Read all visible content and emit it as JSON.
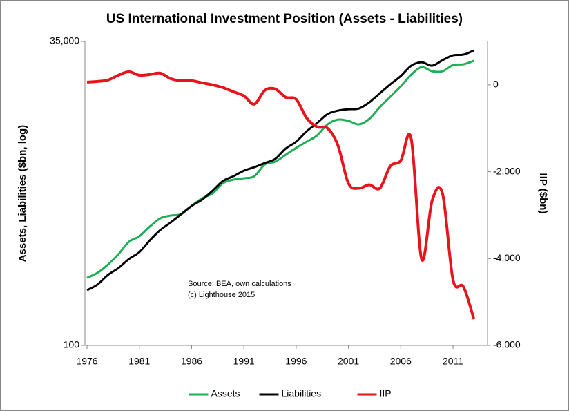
{
  "chart_data": {
    "type": "line",
    "title": "US International Investment Position (Assets - Liabilities)",
    "ylabel": "Assets, Liabilities ($bn, log)",
    "y2label": "IIP ($bn)",
    "annotations": [
      "Source: BEA, own calculations",
      "(c) Lighthouse 2015"
    ],
    "log_y": true,
    "grid": false,
    "legend": "bottom",
    "x": [
      1976,
      1977,
      1978,
      1979,
      1980,
      1981,
      1982,
      1983,
      1984,
      1985,
      1986,
      1987,
      1988,
      1989,
      1990,
      1991,
      1992,
      1993,
      1994,
      1995,
      1996,
      1997,
      1998,
      1999,
      2000,
      2001,
      2002,
      2003,
      2004,
      2005,
      2006,
      2007,
      2008,
      2009,
      2010,
      2011,
      2012,
      2013
    ],
    "xlim": [
      1975.8,
      2014.3
    ],
    "xticks": [
      1976,
      1981,
      1986,
      1991,
      1996,
      2001,
      2006,
      2011
    ],
    "ylim": [
      100,
      35000
    ],
    "yticks": [
      100,
      {
        "value": 35000,
        "label": "35,000"
      }
    ],
    "y2lim": [
      -6000,
      1000
    ],
    "y2ticks": [
      {
        "value": -6000,
        "label": "-6,000"
      },
      {
        "value": -4000,
        "label": "-4,000"
      },
      {
        "value": -2000,
        "label": "-2,000"
      },
      0
    ],
    "series": [
      {
        "name": "Assets",
        "color": "#1fae55",
        "values": [
          368,
          405,
          475,
          580,
          736,
          819,
          987,
          1158,
          1221,
          1254,
          1471,
          1703,
          1870,
          2280,
          2440,
          2505,
          2607,
          3266,
          3450,
          3937,
          4500,
          5070,
          5720,
          7080,
          7760,
          7560,
          7080,
          7870,
          9870,
          12050,
          14720,
          18450,
          21340,
          19710,
          19710,
          22230,
          22540,
          24080
        ]
      },
      {
        "name": "Liabilities",
        "color": "#000000",
        "values": [
          290,
          323,
          389,
          444,
          528,
          603,
          756,
          923,
          1069,
          1254,
          1471,
          1660,
          1971,
          2377,
          2607,
          2900,
          3100,
          3360,
          3640,
          4440,
          5070,
          6190,
          7260,
          8630,
          9230,
          9480,
          9610,
          10830,
          12880,
          15310,
          17950,
          21930,
          23440,
          21930,
          24390,
          26790,
          27170,
          29390
        ]
      },
      {
        "name": "IIP",
        "color": "#e8141b",
        "axis": "y2",
        "values": [
          63,
          79,
          111,
          222,
          302,
          222,
          238,
          270,
          143,
          95,
          95,
          48,
          0,
          -63,
          -159,
          -254,
          -444,
          -127,
          -95,
          -286,
          -333,
          -762,
          -968,
          -1000,
          -1397,
          -2270,
          -2381,
          -2301,
          -2381,
          -1873,
          -1746,
          -1238,
          -4015,
          -2667,
          -2508,
          -4491,
          -4650,
          -5396
        ]
      }
    ]
  }
}
